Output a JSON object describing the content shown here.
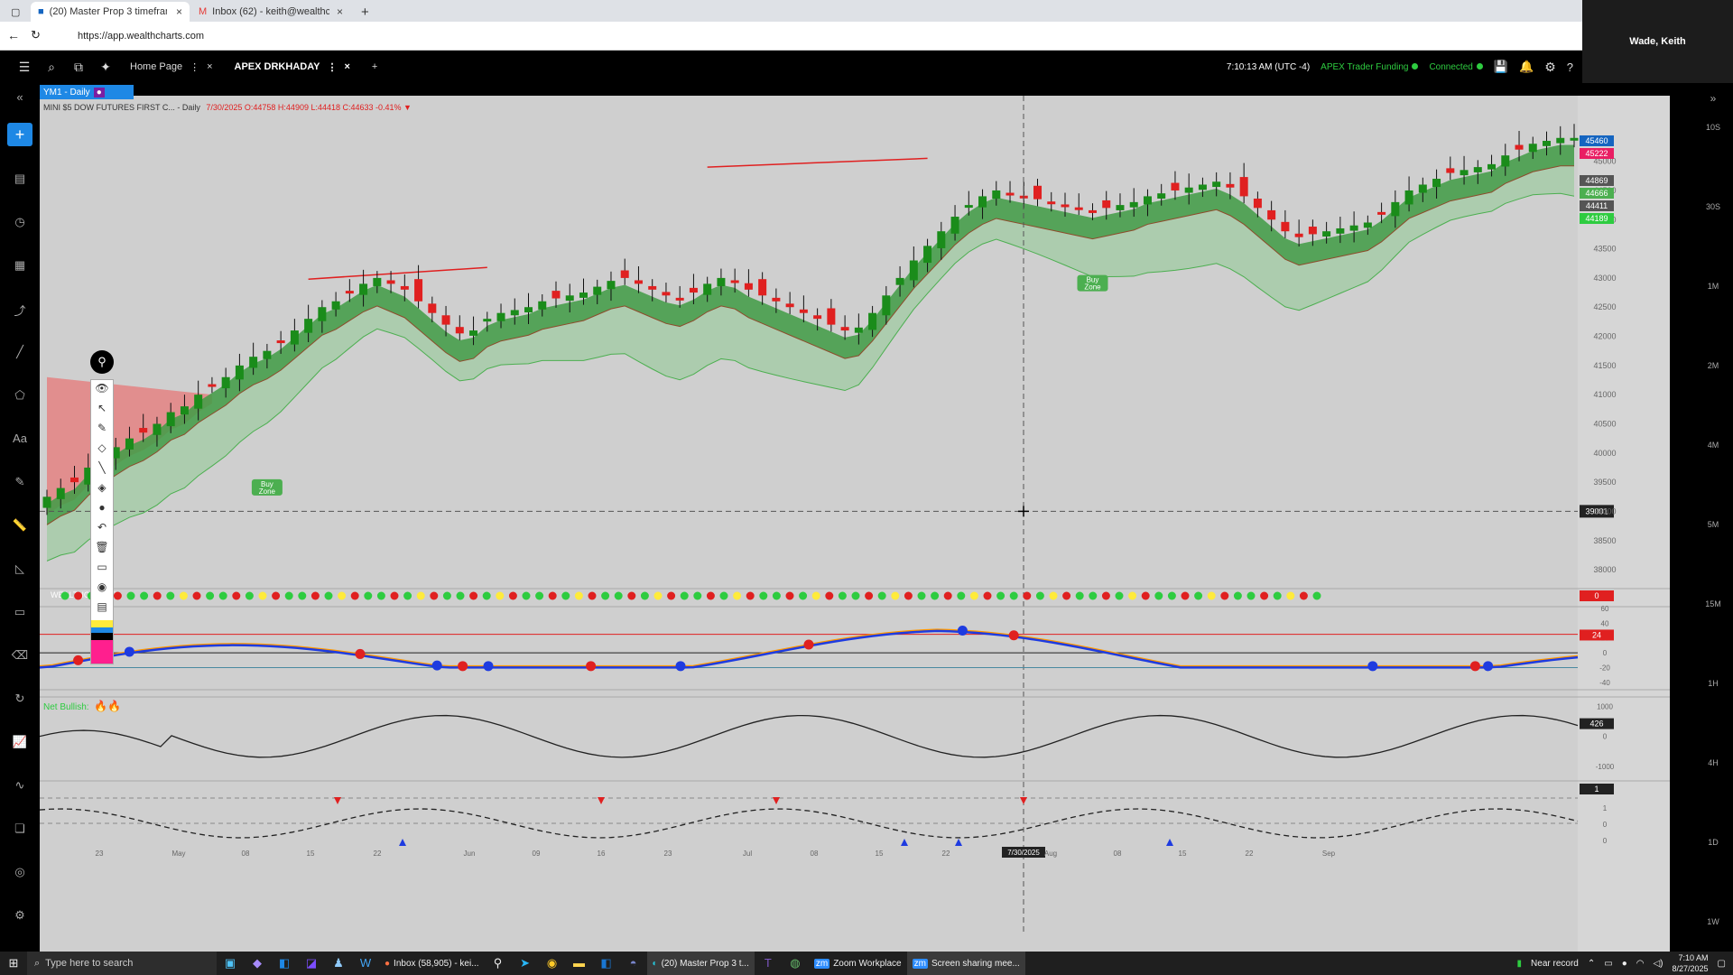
{
  "browser": {
    "tabs": [
      {
        "label": "(20) Master Prop 3 timeframes - Y",
        "active": true
      },
      {
        "label": "Inbox (62) - keith@wealthcharts.c",
        "active": false
      }
    ],
    "new_tab": "+",
    "url": "https://app.wealthcharts.com"
  },
  "zoom_user": "Wade, Keith",
  "app": {
    "tabs": [
      {
        "label": "Home Page",
        "active": false
      },
      {
        "label": "APEX DRKHADAY",
        "active": true
      }
    ],
    "time": "7:10:13 AM",
    "timezone": "(UTC -4)",
    "account": "APEX Trader Funding",
    "status": "Connected",
    "symbol_tag": "YM1 - Daily",
    "symbol_line": "MINI $5 DOW FUTURES FIRST C... - Daily",
    "ohlc": "7/30/2025 O:44758 H:44909 L:44418 C:44633 -0.41% ▼"
  },
  "chart_data": {
    "type": "candlestick",
    "title": "MINI $5 DOW FUTURES FIRST C... - Daily",
    "x_ticks": [
      "23",
      "May",
      "08",
      "15",
      "22",
      "Jun",
      "09",
      "16",
      "23",
      "Jul",
      "08",
      "15",
      "22",
      "7/30/2025",
      "Aug",
      "08",
      "15",
      "22",
      "Sep"
    ],
    "y_ticks": [
      "45000",
      "44500",
      "44000",
      "43500",
      "43000",
      "42500",
      "42000",
      "41500",
      "41000",
      "40500",
      "40000",
      "39500",
      "39000",
      "38500",
      "38000"
    ],
    "ylim": [
      37800,
      46000
    ],
    "price_labels": [
      {
        "text": "45460",
        "color": "#1565c0"
      },
      {
        "text": "45222",
        "color": "#e91e63"
      },
      {
        "text": "44869",
        "color": "#555555"
      },
      {
        "text": "44666",
        "color": "#4caf50"
      },
      {
        "text": "44411",
        "color": "#555555"
      },
      {
        "text": "44189",
        "color": "#2ecc40"
      }
    ],
    "crosshair_price": "39001",
    "close_series": [
      39250,
      39400,
      39500,
      39750,
      39950,
      40100,
      40250,
      40350,
      40500,
      40700,
      40800,
      41000,
      41150,
      41300,
      41500,
      41650,
      41750,
      41900,
      42100,
      42300,
      42500,
      42600,
      42750,
      42900,
      43000,
      42900,
      42800,
      42600,
      42400,
      42200,
      42050,
      42100,
      42300,
      42400,
      42450,
      42500,
      42600,
      42650,
      42700,
      42750,
      42850,
      42950,
      43000,
      42900,
      42800,
      42700,
      42650,
      42750,
      42900,
      43000,
      42950,
      42800,
      42700,
      42600,
      42500,
      42400,
      42300,
      42200,
      42100,
      42150,
      42400,
      42700,
      43000,
      43300,
      43550,
      43800,
      44050,
      44250,
      44400,
      44500,
      44450,
      44400,
      44350,
      44300,
      44250,
      44200,
      44150,
      44200,
      44250,
      44300,
      44400,
      44450,
      44500,
      44550,
      44600,
      44650,
      44550,
      44400,
      44200,
      44000,
      43800,
      43700,
      43750,
      43800,
      43850,
      43900,
      43950,
      44100,
      44300,
      44500,
      44600,
      44700,
      44800,
      44850,
      44900,
      44950,
      45100,
      45200,
      45300,
      45350,
      45400,
      45400
    ],
    "annotations": [
      "Buy Zone",
      "Buy Zone"
    ],
    "indicator_panels": [
      {
        "name": "dots",
        "y_label": "0"
      },
      {
        "name": "oscillator",
        "y_ticks": [
          "60",
          "40",
          "20",
          "0",
          "-20",
          "-40"
        ],
        "value": "24",
        "ylim": [
          -50,
          60
        ]
      },
      {
        "name": "net-bullish",
        "label": "Net Bullish:",
        "y_ticks": [
          "1000",
          "0",
          "-1000"
        ],
        "value": "426",
        "ylim": [
          -1400,
          1200
        ]
      },
      {
        "name": "dashed",
        "y_ticks": [
          "1",
          "1",
          "0",
          "0"
        ],
        "value": "1"
      }
    ],
    "right_timeframes": [
      "10S",
      "30S",
      "1M",
      "2M",
      "4M",
      "5M",
      "15M",
      "1H",
      "4H",
      "1D",
      "1W"
    ],
    "watermark": "WEALTHCHARTS",
    "legend_suffix": "15"
  },
  "taskbar": {
    "search": "Type here to search",
    "apps": [
      {
        "label": "Inbox (58,905) - kei..."
      },
      {
        "label": "(20) Master Prop 3 t..."
      },
      {
        "label": "Zoom Workplace"
      },
      {
        "label": "Screen sharing mee..."
      }
    ],
    "near_record": "Near record",
    "time": "7:10 AM",
    "date": "8/27/2025"
  },
  "colors": {
    "bull": "#1a8c1a",
    "bear": "#e02020",
    "band": "#4caf50",
    "blue": "#1e3be0",
    "orange": "#ff9800"
  }
}
